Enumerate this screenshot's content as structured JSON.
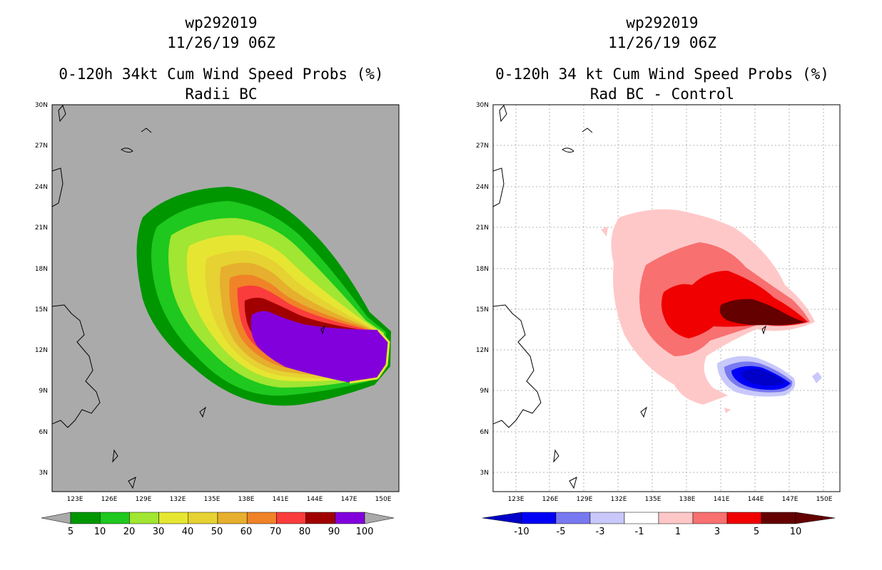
{
  "left_panel": {
    "titles": [
      "wp292019",
      "11/26/19 06Z",
      "0-120h 34kt Cum Wind Speed Probs (%)",
      "Radii BC"
    ],
    "colorbar_labels": [
      "5",
      "10",
      "20",
      "30",
      "40",
      "50",
      "60",
      "70",
      "80",
      "90",
      "100"
    ],
    "colorbar_colors": [
      "#009600",
      "#1ec81e",
      "#a0e632",
      "#e6e632",
      "#e6d232",
      "#e6af2d",
      "#f08228",
      "#fa3c3c",
      "#a00000",
      "#8200dc"
    ],
    "background_color": "#aaaaaa"
  },
  "right_panel": {
    "titles": [
      "wp292019",
      "11/26/19 06Z",
      "0-120h 34 kt Cum Wind Speed Probs (%)",
      "Rad BC - Control"
    ],
    "colorbar_labels": [
      "-10",
      "-5",
      "-3",
      "-1",
      "1",
      "3",
      "5",
      "10"
    ],
    "colorbar_colors": [
      "#0000c8",
      "#0000f5",
      "#7878f0",
      "#c8c8fa",
      "#ffffff",
      "#ffc8c8",
      "#f87070",
      "#f00000",
      "#640000"
    ],
    "background_color": "#ffffff"
  },
  "axes": {
    "lon_labels": [
      "123E",
      "126E",
      "129E",
      "132E",
      "135E",
      "138E",
      "141E",
      "144E",
      "147E",
      "150E"
    ],
    "lat_labels": [
      "30N",
      "27N",
      "24N",
      "21N",
      "18N",
      "15N",
      "12N",
      "9N",
      "6N",
      "3N"
    ]
  }
}
